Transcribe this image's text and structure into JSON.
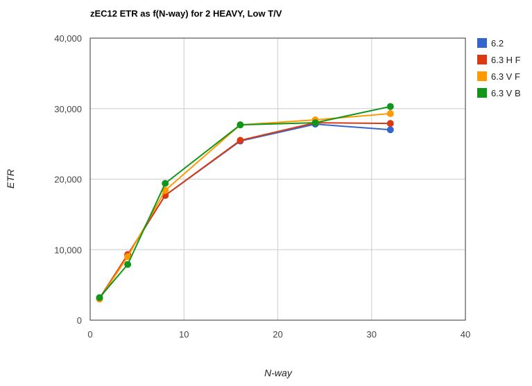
{
  "chart_data": {
    "type": "line",
    "title": "zEC12 ETR as f(N-way) for 2 HEAVY, Low T/V",
    "xlabel": "N-way",
    "ylabel": "ETR",
    "xlim": [
      0,
      40
    ],
    "ylim": [
      0,
      40000
    ],
    "x_ticks": [
      "0",
      "10",
      "20",
      "30",
      "40"
    ],
    "y_ticks": [
      "0",
      "10,000",
      "20,000",
      "30,000",
      "40,000"
    ],
    "grid": true,
    "legend_position": "right",
    "x": [
      1,
      4,
      8,
      16,
      24,
      32
    ],
    "series": [
      {
        "name": "6.2",
        "color": "#3366cc",
        "values": [
          3100,
          9200,
          17700,
          25400,
          27800,
          27000
        ]
      },
      {
        "name": "6.3 H F",
        "color": "#dc3912",
        "values": [
          3100,
          9300,
          17700,
          25500,
          28000,
          27900
        ]
      },
      {
        "name": "6.3 V F",
        "color": "#ff9900",
        "values": [
          3000,
          9000,
          18400,
          27700,
          28400,
          29300
        ]
      },
      {
        "name": "6.3 V B",
        "color": "#109618",
        "values": [
          3200,
          7900,
          19400,
          27700,
          28000,
          30300
        ]
      }
    ]
  }
}
